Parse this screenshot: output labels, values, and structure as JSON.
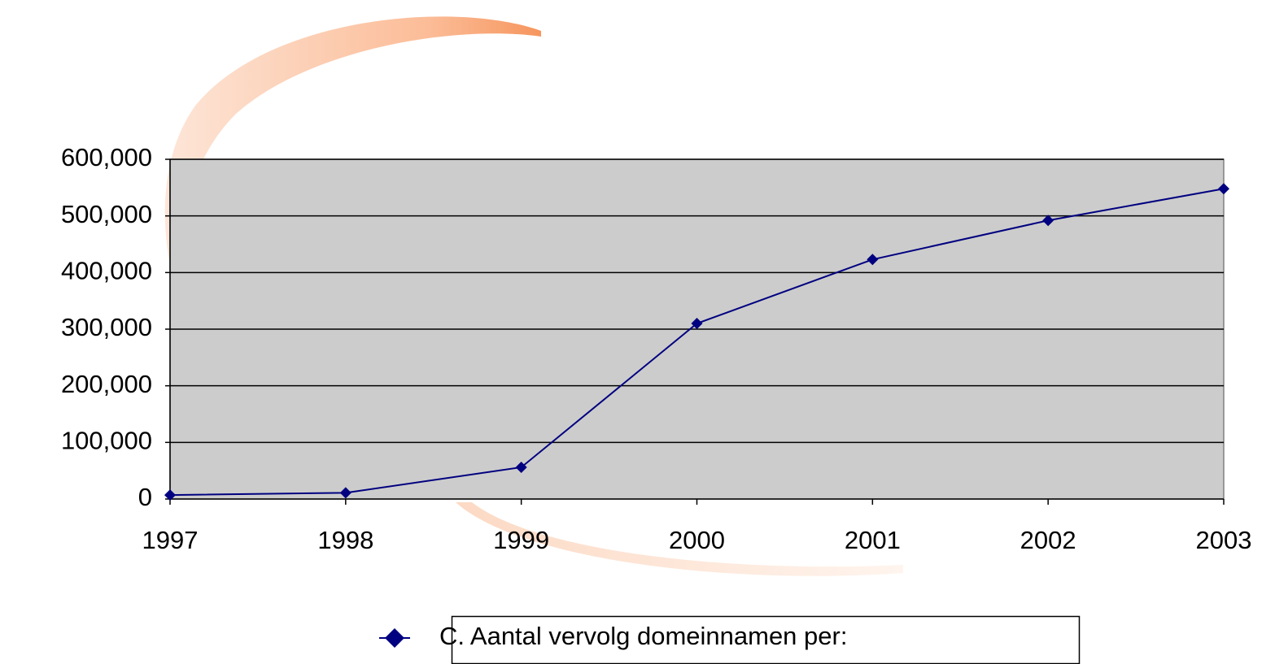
{
  "chart_data": {
    "type": "line",
    "categories": [
      "1997",
      "1998",
      "1999",
      "2000",
      "2001",
      "2002",
      "2003"
    ],
    "series": [
      {
        "name": "C. Aantal vervolg domeinnamen per:",
        "color": "#000080",
        "values": [
          7000,
          11000,
          56000,
          310000,
          423000,
          492000,
          548000
        ]
      }
    ],
    "ylim": [
      0,
      600000
    ],
    "yticks": [
      0,
      {
        "value": 100000,
        "label": "100,000"
      },
      {
        "value": 200000,
        "label": "200,000"
      },
      {
        "value": 300000,
        "label": "300,000"
      },
      {
        "value": 400000,
        "label": "400,000"
      },
      {
        "value": 500000,
        "label": "500,000"
      },
      {
        "value": 600000,
        "label": "600,000"
      }
    ],
    "grid": true,
    "plot_background": "#cccccc",
    "legend": "bottom"
  }
}
